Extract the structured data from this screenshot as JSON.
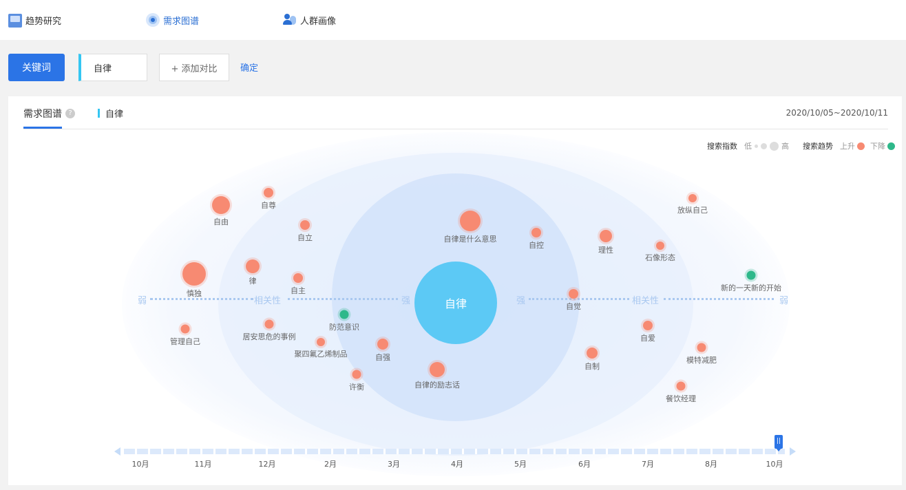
{
  "nav": {
    "items": [
      {
        "label": "趋势研究",
        "icon": "book-chart-icon",
        "active": false
      },
      {
        "label": "需求图谱",
        "icon": "target-icon",
        "active": true
      },
      {
        "label": "人群画像",
        "icon": "users-icon",
        "active": false
      }
    ]
  },
  "search": {
    "keyword_button": "关键词",
    "keyword_value": "自律",
    "add_compare": "+ 添加对比",
    "confirm": "确定"
  },
  "panel": {
    "tab_title": "需求图谱",
    "help": "?",
    "keyword_tag": "自律",
    "date_range": "2020/10/05~2020/10/11"
  },
  "legend": {
    "index_title": "搜索指数",
    "low": "低",
    "high": "高",
    "trend_title": "搜索趋势",
    "up": "上升",
    "down": "下降",
    "up_color": "#f78a72",
    "down_color": "#2eb88a"
  },
  "axis": {
    "weak_left": "弱",
    "relevance_left": "相关性",
    "strong_left": "强",
    "strong_right": "强",
    "relevance_right": "相关性",
    "weak_right": "弱"
  },
  "center": {
    "label": "自律"
  },
  "nodes": [
    {
      "label": "自由",
      "size": 26,
      "trend": "up"
    },
    {
      "label": "自尊",
      "size": 14,
      "trend": "up"
    },
    {
      "label": "自立",
      "size": 14,
      "trend": "up"
    },
    {
      "label": "慎独",
      "size": 34,
      "trend": "up"
    },
    {
      "label": "律",
      "size": 20,
      "trend": "up"
    },
    {
      "label": "自主",
      "size": 14,
      "trend": "up"
    },
    {
      "label": "管理自己",
      "size": 13,
      "trend": "up"
    },
    {
      "label": "居安思危的事例",
      "size": 13,
      "trend": "up"
    },
    {
      "label": "防范意识",
      "size": 13,
      "trend": "down"
    },
    {
      "label": "聚四氟乙烯制品",
      "size": 12,
      "trend": "up"
    },
    {
      "label": "自强",
      "size": 16,
      "trend": "up"
    },
    {
      "label": "许衡",
      "size": 13,
      "trend": "up"
    },
    {
      "label": "自律是什么意思",
      "size": 30,
      "trend": "up"
    },
    {
      "label": "自律的励志话",
      "size": 22,
      "trend": "up"
    },
    {
      "label": "自控",
      "size": 14,
      "trend": "up"
    },
    {
      "label": "自觉",
      "size": 14,
      "trend": "up"
    },
    {
      "label": "理性",
      "size": 18,
      "trend": "up"
    },
    {
      "label": "石像形态",
      "size": 12,
      "trend": "up"
    },
    {
      "label": "放纵自己",
      "size": 12,
      "trend": "up"
    },
    {
      "label": "新的一天新的开始",
      "size": 13,
      "trend": "down"
    },
    {
      "label": "自爱",
      "size": 14,
      "trend": "up"
    },
    {
      "label": "模特减肥",
      "size": 13,
      "trend": "up"
    },
    {
      "label": "自制",
      "size": 16,
      "trend": "up"
    },
    {
      "label": "餐饮经理",
      "size": 13,
      "trend": "up"
    }
  ],
  "timeline": {
    "months": [
      "10月",
      "11月",
      "12月",
      "2月",
      "3月",
      "4月",
      "5月",
      "6月",
      "7月",
      "8月",
      "10月"
    ],
    "handle": "||"
  }
}
